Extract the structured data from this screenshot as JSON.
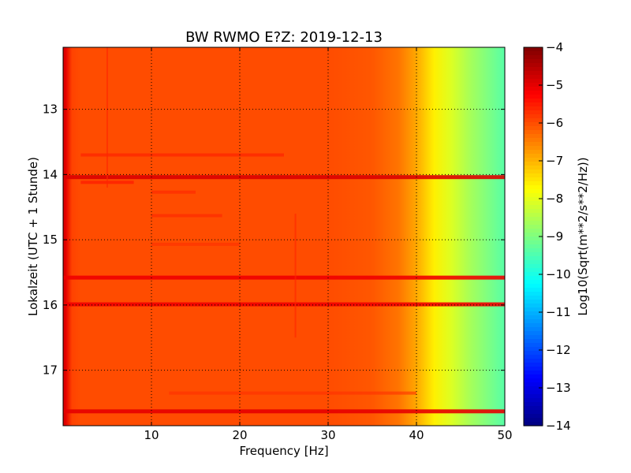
{
  "chart_data": {
    "type": "heatmap",
    "title": "BW RWMO E?Z: 2019-12-13",
    "xlabel": "Frequency [Hz]",
    "ylabel": "Lokalzeit (UTC + 1 Stunde)",
    "xlim": [
      0,
      50
    ],
    "ylim": [
      12.05,
      17.85
    ],
    "y_inverted": true,
    "grid": true,
    "x_ticks": [
      10,
      20,
      30,
      40,
      50
    ],
    "x_tick_labels": [
      "10",
      "20",
      "30",
      "40",
      "50"
    ],
    "y_ticks": [
      13,
      14,
      15,
      16,
      17
    ],
    "y_tick_labels": [
      "13",
      "14",
      "15",
      "16",
      "17"
    ],
    "colorbar": {
      "label": "Log10(Sqrt(m**2/s**2/Hz))",
      "range": [
        -14,
        -4
      ],
      "ticks": [
        -4,
        -5,
        -6,
        -7,
        -8,
        -9,
        -10,
        -11,
        -12,
        -13,
        -14
      ],
      "tick_labels": [
        "−4",
        "−5",
        "−6",
        "−7",
        "−8",
        "−9",
        "−10",
        "−11",
        "−12",
        "−13",
        "−14"
      ],
      "colormap": "jet"
    },
    "spectrum_profile": {
      "frequency_hz": [
        0,
        0.3,
        1,
        2,
        5,
        10,
        20,
        30,
        35,
        38,
        40,
        42,
        44,
        46,
        48,
        50
      ],
      "log10_amplitude": [
        -4.8,
        -5.0,
        -5.9,
        -6.0,
        -6.0,
        -6.0,
        -6.0,
        -6.0,
        -6.1,
        -6.4,
        -6.9,
        -7.6,
        -8.1,
        -8.6,
        -9.0,
        -9.4
      ]
    },
    "strong_lines": [
      {
        "time": 14.04,
        "f_start": 0,
        "f_end": 50,
        "level": -4.9
      },
      {
        "time": 15.58,
        "f_start": 0,
        "f_end": 50,
        "level": -5.1
      },
      {
        "time": 15.99,
        "f_start": 0,
        "f_end": 50,
        "level": -5.1
      },
      {
        "time": 17.63,
        "f_start": 0,
        "f_end": 50,
        "level": -5.0
      }
    ],
    "weak_lines": [
      {
        "time": 13.7,
        "f_start": 2,
        "f_end": 25,
        "level": -5.5
      },
      {
        "time": 14.12,
        "f_start": 2,
        "f_end": 8,
        "level": -5.4
      },
      {
        "time": 14.27,
        "f_start": 10,
        "f_end": 15,
        "level": -5.6
      },
      {
        "time": 14.63,
        "f_start": 10,
        "f_end": 18,
        "level": -5.6
      },
      {
        "time": 15.07,
        "f_start": 10,
        "f_end": 20,
        "level": -5.7
      },
      {
        "time": 17.35,
        "f_start": 12,
        "f_end": 40,
        "level": -5.7
      }
    ],
    "vertical_lines": [
      {
        "freq": 5,
        "t_start": 12.05,
        "t_end": 14.2,
        "level": -5.6
      },
      {
        "freq": 26.3,
        "t_start": 14.6,
        "t_end": 16.5,
        "level": -5.6
      }
    ]
  }
}
